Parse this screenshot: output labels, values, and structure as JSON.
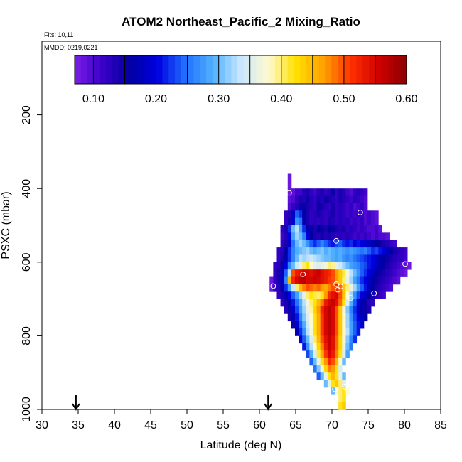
{
  "chart_data": {
    "type": "heatmap",
    "title": "ATOM2 Northeast_Pacific_2 Mixing_Ratio",
    "flights_label": "Flts: 10,11",
    "dates_label": "MMDD: 0219,0221",
    "xlabel": "Latitude (deg N)",
    "ylabel": "PSXC (mbar)",
    "xlim": [
      30,
      85
    ],
    "ylim": [
      1000,
      0
    ],
    "x_ticks": [
      30,
      35,
      40,
      45,
      50,
      55,
      60,
      65,
      70,
      75,
      80,
      85
    ],
    "y_ticks": [
      200,
      400,
      600,
      800,
      1000
    ],
    "colorbar": {
      "min": 0.07,
      "max": 0.6,
      "ticks": [
        "0.10",
        "0.20",
        "0.30",
        "0.40",
        "0.50",
        "0.60"
      ],
      "colors": [
        "#7a1fe6",
        "#3a00c8",
        "#0000a0",
        "#0000e0",
        "#2070ff",
        "#50b0ff",
        "#c8e6ff",
        "#fffad0",
        "#ffe000",
        "#ffa000",
        "#ff3000",
        "#d00000",
        "#8b0000"
      ]
    },
    "arrows_latitude": [
      34.7,
      61.2
    ],
    "bin_size": {
      "lat": 0.5,
      "pres": 20
    },
    "rows": [
      {
        "p": 370,
        "from": 63.9,
        "vals": [
          0.08
        ]
      },
      {
        "p": 390,
        "from": 63.9,
        "vals": [
          0.08
        ]
      },
      {
        "p": 410,
        "from": 63.9,
        "vals": [
          0.08,
          0.09,
          0.11,
          0.11,
          0.13,
          0.14,
          0.12,
          0.11,
          0.13,
          0.14,
          0.12,
          0.13,
          0.15,
          0.12,
          0.14,
          0.13,
          0.11,
          0.1,
          0.12,
          0.13,
          0.12,
          0.11
        ]
      },
      {
        "p": 430,
        "from": 63.9,
        "vals": [
          0.09,
          0.1,
          0.12,
          0.14,
          0.13,
          0.15,
          0.13,
          0.12,
          0.14,
          0.13,
          0.15,
          0.14,
          0.13,
          0.12,
          0.14,
          0.13,
          0.12,
          0.11,
          0.13,
          0.12,
          0.11,
          0.1
        ]
      },
      {
        "p": 450,
        "from": 63.9,
        "vals": [
          0.1,
          0.12,
          0.13,
          0.15,
          0.17,
          0.14,
          0.13,
          0.12,
          0.15,
          0.14,
          0.13,
          0.12,
          0.14,
          0.12,
          0.13,
          0.12,
          0.11,
          0.12,
          0.1,
          0.11,
          0.12,
          0.1
        ]
      },
      {
        "p": 470,
        "from": 63.4,
        "vals": [
          0.12,
          0.13,
          0.18,
          0.24,
          0.22,
          0.16,
          0.14,
          0.12,
          0.13,
          0.14,
          0.13,
          0.12,
          0.13,
          0.14,
          0.12,
          0.13,
          0.12,
          0.11,
          0.12,
          0.11,
          0.12,
          0.11,
          0.1,
          0.11,
          0.1,
          0.09
        ]
      },
      {
        "p": 490,
        "from": 63.4,
        "vals": [
          0.12,
          0.14,
          0.2,
          0.27,
          0.25,
          0.17,
          0.14,
          0.12,
          0.13,
          0.12,
          0.13,
          0.12,
          0.14,
          0.13,
          0.12,
          0.13,
          0.12,
          0.13,
          0.11,
          0.12,
          0.11,
          0.12,
          0.1,
          0.11,
          0.1,
          0.09
        ]
      },
      {
        "p": 510,
        "from": 62.9,
        "vals": [
          0.12,
          0.14,
          0.22,
          0.3,
          0.33,
          0.28,
          0.22,
          0.17,
          0.15,
          0.14,
          0.16,
          0.15,
          0.14,
          0.16,
          0.15,
          0.14,
          0.13,
          0.14,
          0.12,
          0.13,
          0.12,
          0.11,
          0.12,
          0.11,
          0.1,
          0.1,
          0.11,
          0.09
        ]
      },
      {
        "p": 530,
        "from": 62.9,
        "vals": [
          0.11,
          0.13,
          0.2,
          0.28,
          0.32,
          0.3,
          0.26,
          0.2,
          0.16,
          0.14,
          0.13,
          0.15,
          0.13,
          0.14,
          0.13,
          0.12,
          0.13,
          0.12,
          0.13,
          0.12,
          0.11,
          0.12,
          0.11,
          0.12,
          0.11,
          0.1,
          0.11,
          0.1,
          0.1,
          0.09
        ]
      },
      {
        "p": 550,
        "from": 62.9,
        "vals": [
          0.12,
          0.14,
          0.19,
          0.25,
          0.3,
          0.32,
          0.3,
          0.27,
          0.24,
          0.22,
          0.24,
          0.26,
          0.24,
          0.22,
          0.21,
          0.23,
          0.24,
          0.22,
          0.21,
          0.22,
          0.2,
          0.21,
          0.2,
          0.19,
          0.18,
          0.17,
          0.16,
          0.15,
          0.14,
          0.13,
          0.12,
          0.11
        ]
      },
      {
        "p": 570,
        "from": 62.4,
        "vals": [
          0.12,
          0.13,
          0.16,
          0.22,
          0.26,
          0.29,
          0.3,
          0.31,
          0.32,
          0.3,
          0.29,
          0.3,
          0.31,
          0.29,
          0.3,
          0.29,
          0.28,
          0.29,
          0.28,
          0.27,
          0.28,
          0.27,
          0.26,
          0.25,
          0.26,
          0.24,
          0.22,
          0.23,
          0.21,
          0.2,
          0.18,
          0.16,
          0.14,
          0.13,
          0.12,
          0.11
        ]
      },
      {
        "p": 590,
        "from": 62.4,
        "vals": [
          0.12,
          0.14,
          0.17,
          0.22,
          0.26,
          0.3,
          0.33,
          0.32,
          0.33,
          0.34,
          0.33,
          0.32,
          0.31,
          0.3,
          0.3,
          0.29,
          0.28,
          0.29,
          0.27,
          0.26,
          0.27,
          0.25,
          0.24,
          0.23,
          0.22,
          0.21,
          0.2,
          0.19,
          0.17,
          0.16,
          0.15,
          0.14,
          0.13,
          0.12,
          0.12,
          0.11
        ]
      },
      {
        "p": 610,
        "from": 61.9,
        "vals": [
          0.12,
          0.13,
          0.16,
          0.2,
          0.26,
          0.3,
          0.34,
          0.36,
          0.4,
          0.42,
          0.38,
          0.36,
          0.35,
          0.36,
          0.37,
          0.4,
          0.39,
          0.36,
          0.34,
          0.32,
          0.3,
          0.28,
          0.27,
          0.26,
          0.24,
          0.23,
          0.21,
          0.2,
          0.18,
          0.17,
          0.16,
          0.14,
          0.13,
          0.12,
          0.11,
          0.1,
          0.09,
          0.08
        ]
      },
      {
        "p": 630,
        "from": 61.9,
        "vals": [
          0.12,
          0.14,
          0.18,
          0.24,
          0.33,
          0.5,
          0.53,
          0.54,
          0.55,
          0.55,
          0.54,
          0.55,
          0.56,
          0.54,
          0.53,
          0.52,
          0.5,
          0.47,
          0.44,
          0.41,
          0.37,
          0.33,
          0.3,
          0.27,
          0.24,
          0.22,
          0.2,
          0.18,
          0.16,
          0.15,
          0.14,
          0.13,
          0.12,
          0.11,
          0.1,
          0.09,
          0.08
        ]
      },
      {
        "p": 650,
        "from": 61.4,
        "vals": [
          0.08,
          0.12,
          0.14,
          0.18,
          0.26,
          0.45,
          0.52,
          0.55,
          0.56,
          0.57,
          0.55,
          0.55,
          0.56,
          0.55,
          0.54,
          0.53,
          0.51,
          0.5,
          0.47,
          0.44,
          0.4,
          0.36,
          0.32,
          0.28,
          0.25,
          0.22,
          0.2,
          0.18,
          0.16,
          0.15,
          0.14,
          0.13,
          0.12,
          0.11,
          0.1,
          0.09
        ]
      },
      {
        "p": 670,
        "from": 61.4,
        "vals": [
          0.08,
          0.12,
          0.13,
          0.17,
          0.22,
          0.28,
          0.34,
          0.4,
          0.45,
          0.48,
          0.5,
          0.49,
          0.48,
          0.49,
          0.47,
          0.46,
          0.48,
          0.5,
          0.52,
          0.49,
          0.44,
          0.4,
          0.36,
          0.32,
          0.28,
          0.24,
          0.21,
          0.18,
          0.16,
          0.14,
          0.13,
          0.12,
          0.11,
          0.1
        ]
      },
      {
        "p": 690,
        "from": 62.4,
        "vals": [
          0.12,
          0.14,
          0.17,
          0.2,
          0.24,
          0.28,
          0.32,
          0.36,
          0.4,
          0.42,
          0.41,
          0.4,
          0.42,
          0.47,
          0.52,
          0.54,
          0.55,
          0.5,
          0.44,
          0.38,
          0.32,
          0.27,
          0.23,
          0.2,
          0.18,
          0.16,
          0.14,
          0.13,
          0.12,
          0.11
        ]
      },
      {
        "p": 710,
        "from": 62.9,
        "vals": [
          0.12,
          0.14,
          0.17,
          0.21,
          0.25,
          0.29,
          0.33,
          0.37,
          0.4,
          0.42,
          0.45,
          0.48,
          0.53,
          0.55,
          0.56,
          0.54,
          0.49,
          0.42,
          0.35,
          0.29,
          0.24,
          0.2,
          0.17,
          0.15,
          0.13,
          0.12
        ]
      },
      {
        "p": 730,
        "from": 63.4,
        "vals": [
          0.13,
          0.15,
          0.19,
          0.23,
          0.28,
          0.32,
          0.36,
          0.39,
          0.43,
          0.47,
          0.52,
          0.55,
          0.57,
          0.55,
          0.5,
          0.44,
          0.37,
          0.31,
          0.26,
          0.22,
          0.19,
          0.17,
          0.15,
          0.14
        ]
      },
      {
        "p": 750,
        "from": 63.9,
        "vals": [
          0.14,
          0.17,
          0.21,
          0.26,
          0.31,
          0.35,
          0.38,
          0.42,
          0.46,
          0.51,
          0.55,
          0.57,
          0.55,
          0.5,
          0.44,
          0.38,
          0.32,
          0.27,
          0.23,
          0.2,
          0.18,
          0.16
        ]
      },
      {
        "p": 770,
        "from": 64.4,
        "vals": [
          0.15,
          0.19,
          0.24,
          0.29,
          0.34,
          0.38,
          0.42,
          0.46,
          0.51,
          0.55,
          0.57,
          0.55,
          0.5,
          0.44,
          0.38,
          0.32,
          0.28,
          0.24,
          0.21,
          0.19
        ]
      },
      {
        "p": 790,
        "from": 64.9,
        "vals": [
          0.17,
          0.22,
          0.27,
          0.33,
          0.37,
          0.42,
          0.46,
          0.51,
          0.55,
          0.57,
          0.55,
          0.5,
          0.44,
          0.38,
          0.33,
          0.28,
          0.24,
          0.21
        ]
      },
      {
        "p": 810,
        "from": 65.4,
        "vals": [
          0.19,
          0.24,
          0.3,
          0.35,
          0.4,
          0.45,
          0.5,
          0.54,
          0.56,
          0.54,
          0.49,
          0.43,
          0.37,
          0.31,
          0.26,
          0.22
        ]
      },
      {
        "p": 830,
        "from": 65.9,
        "vals": [
          0.21,
          0.27,
          0.33,
          0.38,
          0.43,
          0.48,
          0.53,
          0.56,
          0.54,
          0.49,
          0.43,
          0.36,
          0.3,
          0.25
        ]
      },
      {
        "p": 850,
        "from": 66.4,
        "vals": [
          0.23,
          0.29,
          0.35,
          0.41,
          0.46,
          0.51,
          0.55,
          0.53,
          0.48,
          0.42,
          0.35,
          0.28
        ]
      },
      {
        "p": 870,
        "from": 66.9,
        "vals": [
          0.24,
          0.3,
          0.36,
          0.42,
          0.47,
          0.52,
          0.5,
          0.45,
          0.38,
          0.3
        ]
      },
      {
        "p": 890,
        "from": 67.4,
        "vals": [
          0.25,
          0.31,
          0.37,
          0.43,
          0.48,
          0.47,
          0.42,
          0.35
        ]
      },
      {
        "p": 910,
        "from": 67.9,
        "vals": [
          0.24,
          0.3,
          0.36,
          0.42,
          0.45,
          0.42,
          0.36,
          0.3
        ]
      },
      {
        "p": 930,
        "from": 68.9,
        "vals": [
          0.3,
          0.36,
          0.42,
          0.44,
          0.4,
          0.35
        ]
      },
      {
        "p": 950,
        "from": 69.9,
        "vals": [
          0.3,
          0.37,
          0.4,
          0.42,
          0.38
        ]
      },
      {
        "p": 970,
        "from": 70.9,
        "vals": [
          0.4,
          0.42
        ]
      },
      {
        "p": 990,
        "from": 70.9,
        "vals": [
          0.42,
          0.44
        ]
      }
    ],
    "markers": [
      {
        "lat": 64.1,
        "p": 412
      },
      {
        "lat": 73.9,
        "p": 465
      },
      {
        "lat": 70.6,
        "p": 542
      },
      {
        "lat": 80.1,
        "p": 605
      },
      {
        "lat": 66.0,
        "p": 633
      },
      {
        "lat": 61.9,
        "p": 665
      },
      {
        "lat": 70.6,
        "p": 660
      },
      {
        "lat": 71.2,
        "p": 666
      },
      {
        "lat": 70.8,
        "p": 675
      },
      {
        "lat": 75.8,
        "p": 685
      },
      {
        "lat": 72.6,
        "p": 697
      },
      {
        "lat": 71.8,
        "p": 938
      },
      {
        "lat": 70.4,
        "p": 945
      }
    ]
  }
}
